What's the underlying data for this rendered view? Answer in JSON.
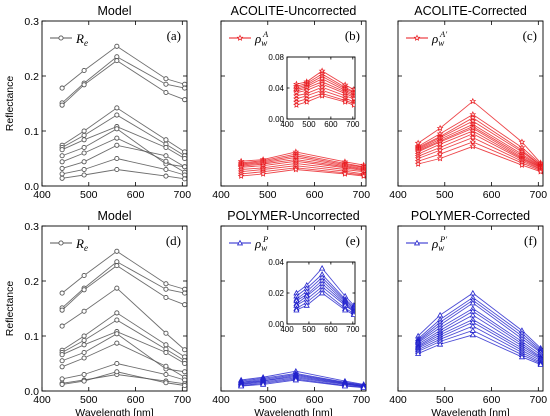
{
  "chart_data": {
    "type": "line",
    "ylabel": "Reflectance",
    "xlabel": "Wavelength [nm]",
    "colors": {
      "model": "#555555",
      "acolite": "#e8161b",
      "polymer": "#2121cc"
    },
    "panels": [
      {
        "title": "Model",
        "letter": "(a)",
        "legend": "R_e",
        "legend_sup": "",
        "color": "model",
        "xlim": [
          400,
          710
        ],
        "ylim": [
          0,
          0.3
        ],
        "xticks": [
          "400",
          "500",
          "600",
          "700"
        ],
        "xtick_values": [
          400,
          500,
          600,
          700
        ],
        "yticks": [
          "0.0",
          "0.1",
          "0.2",
          "0.3"
        ],
        "ytick_values": [
          0,
          0.1,
          0.2,
          0.3
        ],
        "x": [
          443,
          490,
          560,
          665,
          705
        ],
        "series": [
          {
            "values": [
              0.178,
              0.21,
              0.254,
              0.195,
              0.185
            ]
          },
          {
            "values": [
              0.151,
              0.187,
              0.235,
              0.185,
              0.178
            ]
          },
          {
            "values": [
              0.147,
              0.184,
              0.228,
              0.17,
              0.157
            ]
          },
          {
            "values": [
              0.074,
              0.1,
              0.142,
              0.084,
              0.062
            ]
          },
          {
            "values": [
              0.07,
              0.092,
              0.129,
              0.076,
              0.055
            ]
          },
          {
            "values": [
              0.066,
              0.084,
              0.108,
              0.07,
              0.05
            ]
          },
          {
            "values": [
              0.055,
              0.07,
              0.104,
              0.04,
              0.035
            ]
          },
          {
            "values": [
              0.044,
              0.06,
              0.087,
              0.045,
              0.025
            ]
          },
          {
            "values": [
              0.032,
              0.044,
              0.074,
              0.055,
              0.035
            ]
          },
          {
            "values": [
              0.022,
              0.03,
              0.05,
              0.03,
              0.02
            ]
          },
          {
            "values": [
              0.014,
              0.02,
              0.03,
              0.018,
              0.013
            ]
          }
        ]
      },
      {
        "title": "ACOLITE-Uncorrected",
        "letter": "(b)",
        "legend": "ρ_w",
        "legend_sup": "A",
        "color": "acolite",
        "xlim": [
          400,
          710
        ],
        "ylim": [
          0,
          0.3
        ],
        "xticks": [
          "400",
          "500",
          "600",
          "700"
        ],
        "xtick_values": [
          400,
          500,
          600,
          700
        ],
        "yticks": [],
        "ytick_values": [
          0,
          0.1,
          0.2,
          0.3
        ],
        "x": [
          443,
          490,
          560,
          665,
          705
        ],
        "series": [
          {
            "values": [
              0.045,
              0.048,
              0.062,
              0.044,
              0.038
            ]
          },
          {
            "values": [
              0.042,
              0.046,
              0.058,
              0.041,
              0.035
            ]
          },
          {
            "values": [
              0.04,
              0.044,
              0.055,
              0.039,
              0.034
            ]
          },
          {
            "values": [
              0.038,
              0.042,
              0.052,
              0.037,
              0.032
            ]
          },
          {
            "values": [
              0.036,
              0.04,
              0.048,
              0.035,
              0.03
            ]
          },
          {
            "values": [
              0.034,
              0.037,
              0.045,
              0.033,
              0.028
            ]
          },
          {
            "values": [
              0.03,
              0.033,
              0.041,
              0.03,
              0.026
            ]
          },
          {
            "values": [
              0.026,
              0.03,
              0.037,
              0.027,
              0.022
            ]
          },
          {
            "values": [
              0.022,
              0.026,
              0.033,
              0.024,
              0.02
            ]
          },
          {
            "values": [
              0.018,
              0.022,
              0.03,
              0.022,
              0.018
            ]
          }
        ],
        "inset": {
          "xlim": [
            400,
            710
          ],
          "ylim": [
            0,
            0.08
          ],
          "xticks": [
            "400",
            "500",
            "600",
            "700"
          ],
          "xtick_values": [
            400,
            500,
            600,
            700
          ],
          "yticks": [
            "0.00",
            "0.04",
            "0.08"
          ],
          "ytick_values": [
            0,
            0.04,
            0.08
          ],
          "use_parent_series": true
        }
      },
      {
        "title": "ACOLITE-Corrected",
        "letter": "(c)",
        "legend": "ρ_w",
        "legend_sup": "A′",
        "color": "acolite",
        "xlim": [
          400,
          710
        ],
        "ylim": [
          0,
          0.3
        ],
        "xticks": [
          "400",
          "500",
          "600",
          "700"
        ],
        "xtick_values": [
          400,
          500,
          600,
          700
        ],
        "yticks": [],
        "ytick_values": [
          0,
          0.1,
          0.2,
          0.3
        ],
        "x": [
          443,
          490,
          560,
          665,
          705
        ],
        "series": [
          {
            "values": [
              0.078,
              0.105,
              0.154,
              0.08,
              0.042
            ]
          },
          {
            "values": [
              0.072,
              0.095,
              0.13,
              0.07,
              0.04
            ]
          },
          {
            "values": [
              0.07,
              0.09,
              0.124,
              0.065,
              0.038
            ]
          },
          {
            "values": [
              0.068,
              0.088,
              0.118,
              0.062,
              0.037
            ]
          },
          {
            "values": [
              0.066,
              0.085,
              0.112,
              0.058,
              0.036
            ]
          },
          {
            "values": [
              0.064,
              0.082,
              0.108,
              0.055,
              0.035
            ]
          },
          {
            "values": [
              0.062,
              0.08,
              0.105,
              0.052,
              0.034
            ]
          },
          {
            "values": [
              0.058,
              0.076,
              0.1,
              0.05,
              0.033
            ]
          },
          {
            "values": [
              0.054,
              0.07,
              0.095,
              0.048,
              0.031
            ]
          },
          {
            "values": [
              0.05,
              0.065,
              0.088,
              0.045,
              0.03
            ]
          },
          {
            "values": [
              0.045,
              0.058,
              0.08,
              0.042,
              0.028
            ]
          },
          {
            "values": [
              0.04,
              0.05,
              0.072,
              0.038,
              0.026
            ]
          }
        ]
      },
      {
        "title": "Model",
        "letter": "(d)",
        "legend": "R_e",
        "legend_sup": "",
        "color": "model",
        "xlim": [
          400,
          710
        ],
        "ylim": [
          0,
          0.3
        ],
        "xticks": [
          "400",
          "500",
          "600",
          "700"
        ],
        "xtick_values": [
          400,
          500,
          600,
          700
        ],
        "yticks": [
          "0.0",
          "0.1",
          "0.2",
          "0.3"
        ],
        "ytick_values": [
          0,
          0.1,
          0.2,
          0.3
        ],
        "x": [
          443,
          490,
          560,
          665,
          705
        ],
        "series": [
          {
            "values": [
              0.178,
              0.21,
              0.254,
              0.195,
              0.185
            ]
          },
          {
            "values": [
              0.151,
              0.187,
              0.235,
              0.185,
              0.178
            ]
          },
          {
            "values": [
              0.147,
              0.184,
              0.228,
              0.17,
              0.157
            ]
          },
          {
            "values": [
              0.118,
              0.145,
              0.187,
              0.105,
              0.075
            ]
          },
          {
            "values": [
              0.074,
              0.1,
              0.142,
              0.084,
              0.062
            ]
          },
          {
            "values": [
              0.07,
              0.092,
              0.129,
              0.076,
              0.055
            ]
          },
          {
            "values": [
              0.066,
              0.084,
              0.108,
              0.07,
              0.05
            ]
          },
          {
            "values": [
              0.055,
              0.07,
              0.104,
              0.04,
              0.035
            ]
          },
          {
            "values": [
              0.044,
              0.06,
              0.087,
              0.045,
              0.025
            ]
          },
          {
            "values": [
              0.022,
              0.03,
              0.05,
              0.03,
              0.02
            ]
          },
          {
            "values": [
              0.014,
              0.02,
              0.03,
              0.018,
              0.013
            ]
          },
          {
            "values": [
              0.012,
              0.018,
              0.035,
              0.015,
              0.01
            ]
          }
        ]
      },
      {
        "title": "POLYMER-Uncorrected",
        "letter": "(e)",
        "legend": "ρ_w",
        "legend_sup": "P",
        "color": "polymer",
        "xlim": [
          400,
          710
        ],
        "ylim": [
          0,
          0.3
        ],
        "xticks": [
          "400",
          "500",
          "600",
          "700"
        ],
        "xtick_values": [
          400,
          500,
          600,
          700
        ],
        "yticks": [],
        "ytick_values": [
          0,
          0.1,
          0.2,
          0.3
        ],
        "x": [
          443,
          490,
          560,
          665,
          705
        ],
        "series": [
          {
            "values": [
              0.02,
              0.025,
              0.036,
              0.018,
              0.012
            ]
          },
          {
            "values": [
              0.018,
              0.023,
              0.032,
              0.016,
              0.011
            ]
          },
          {
            "values": [
              0.016,
              0.021,
              0.03,
              0.015,
              0.01
            ]
          },
          {
            "values": [
              0.015,
              0.019,
              0.028,
              0.014,
              0.009
            ]
          },
          {
            "values": [
              0.013,
              0.018,
              0.026,
              0.013,
              0.008
            ]
          },
          {
            "values": [
              0.012,
              0.016,
              0.024,
              0.012,
              0.008
            ]
          },
          {
            "values": [
              0.01,
              0.014,
              0.022,
              0.01,
              0.007
            ]
          },
          {
            "values": [
              0.009,
              0.012,
              0.02,
              0.009,
              0.006
            ]
          }
        ],
        "inset": {
          "xlim": [
            400,
            710
          ],
          "ylim": [
            0,
            0.04
          ],
          "xticks": [
            "400",
            "500",
            "600",
            "700"
          ],
          "xtick_values": [
            400,
            500,
            600,
            700
          ],
          "yticks": [
            "0.00",
            "0.02",
            "0.04"
          ],
          "ytick_values": [
            0,
            0.02,
            0.04
          ],
          "use_parent_series": true
        }
      },
      {
        "title": "POLYMER-Corrected",
        "letter": "(f)",
        "legend": "ρ_w",
        "legend_sup": "P′",
        "color": "polymer",
        "xlim": [
          400,
          710
        ],
        "ylim": [
          0,
          0.3
        ],
        "xticks": [
          "400",
          "500",
          "600",
          "700"
        ],
        "xtick_values": [
          400,
          500,
          600,
          700
        ],
        "yticks": [],
        "ytick_values": [
          0,
          0.1,
          0.2,
          0.3
        ],
        "x": [
          443,
          490,
          560,
          665,
          705
        ],
        "series": [
          {
            "values": [
              0.1,
              0.138,
              0.178,
              0.11,
              0.078
            ]
          },
          {
            "values": [
              0.095,
              0.13,
              0.17,
              0.105,
              0.075
            ]
          },
          {
            "values": [
              0.092,
              0.125,
              0.165,
              0.1,
              0.072
            ]
          },
          {
            "values": [
              0.09,
              0.12,
              0.16,
              0.095,
              0.07
            ]
          },
          {
            "values": [
              0.088,
              0.115,
              0.15,
              0.09,
              0.066
            ]
          },
          {
            "values": [
              0.085,
              0.11,
              0.145,
              0.086,
              0.062
            ]
          },
          {
            "values": [
              0.082,
              0.106,
              0.138,
              0.082,
              0.06
            ]
          },
          {
            "values": [
              0.08,
              0.102,
              0.13,
              0.078,
              0.058
            ]
          },
          {
            "values": [
              0.078,
              0.098,
              0.125,
              0.074,
              0.055
            ]
          },
          {
            "values": [
              0.075,
              0.094,
              0.118,
              0.07,
              0.052
            ]
          },
          {
            "values": [
              0.072,
              0.09,
              0.11,
              0.066,
              0.05
            ]
          },
          {
            "values": [
              0.068,
              0.085,
              0.102,
              0.062,
              0.048
            ]
          }
        ]
      }
    ]
  }
}
